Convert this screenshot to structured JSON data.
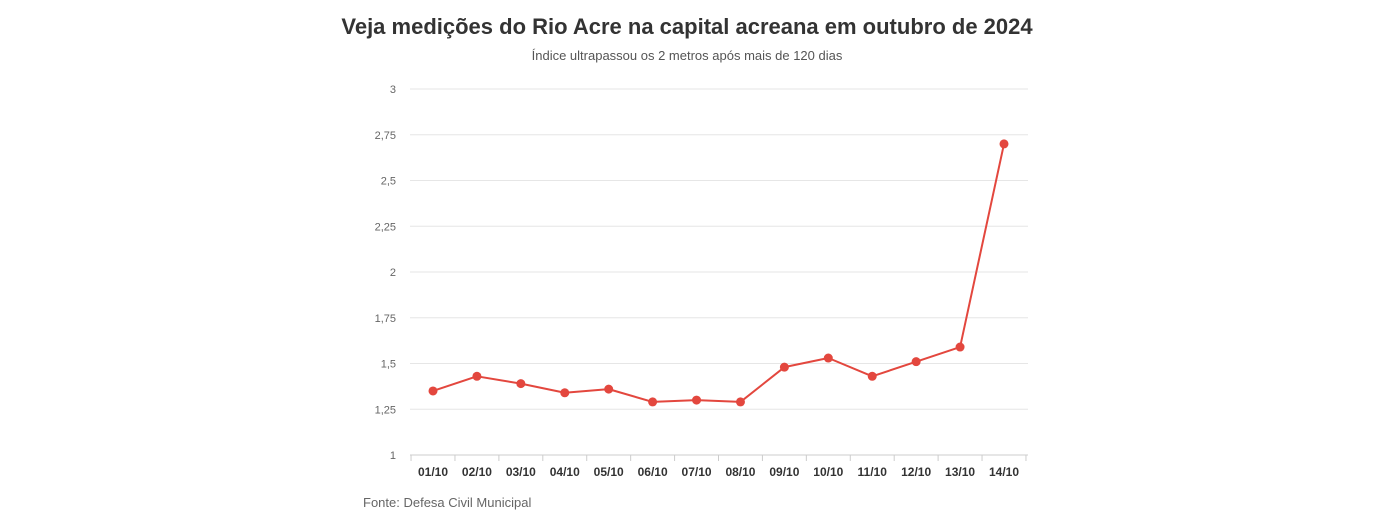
{
  "title": "Veja medições do Rio Acre na capital acreana em outubro de 2024",
  "subtitle": "Índice ultrapassou os 2 metros após mais de 120 dias",
  "source": "Fonte: Defesa Civil Municipal",
  "colors": {
    "series": "#e3473e",
    "grid": "#e6e6e6",
    "axis": "#cccccc"
  },
  "chart_data": {
    "type": "line",
    "title": "Veja medições do Rio Acre na capital acreana em outubro de 2024",
    "subtitle": "Índice ultrapassou os 2 metros após mais de 120 dias",
    "xlabel": "",
    "ylabel": "",
    "categories": [
      "01/10",
      "02/10",
      "03/10",
      "04/10",
      "05/10",
      "06/10",
      "07/10",
      "08/10",
      "09/10",
      "10/10",
      "11/10",
      "12/10",
      "13/10",
      "14/10"
    ],
    "values": [
      1.35,
      1.43,
      1.39,
      1.34,
      1.36,
      1.29,
      1.3,
      1.29,
      1.48,
      1.53,
      1.43,
      1.51,
      1.59,
      2.7
    ],
    "ylim": [
      1,
      3
    ],
    "yticks": [
      "1",
      "1,25",
      "1,5",
      "1,75",
      "2",
      "2,25",
      "2,5",
      "2,75",
      "3"
    ],
    "grid": true,
    "legend": "none"
  }
}
